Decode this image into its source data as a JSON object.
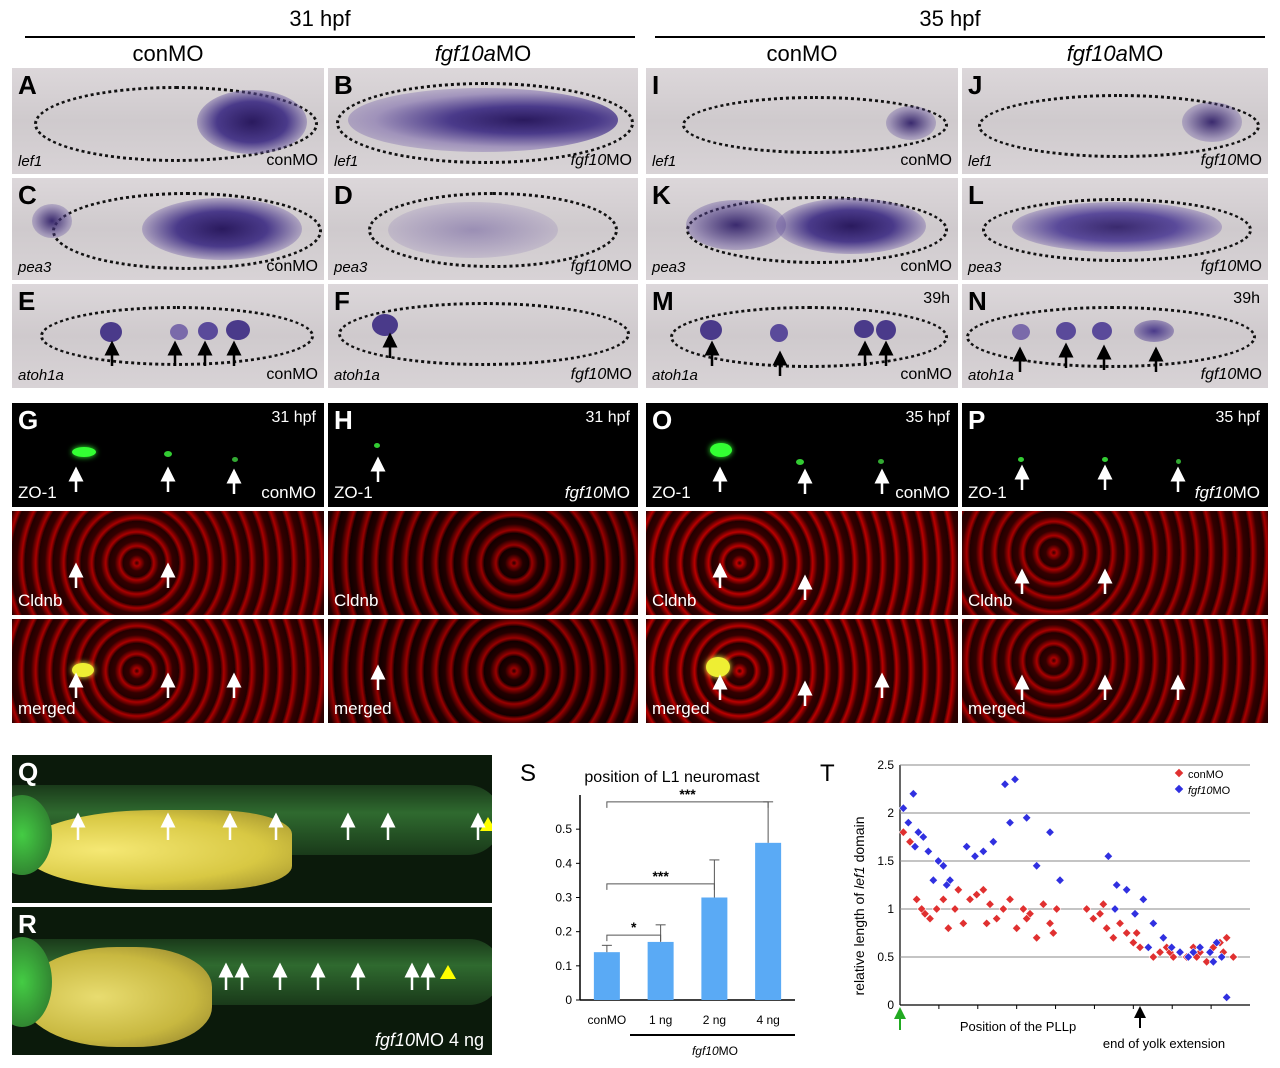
{
  "headers": {
    "t31": "31 hpf",
    "t35": "35 hpf",
    "conMO": "conMO",
    "fgf10aMO_it": "fgf10a",
    "fgf10aMO_rest": "MO"
  },
  "panels": {
    "A": {
      "letter": "A",
      "gene": "lef1",
      "mo": "conMO"
    },
    "B": {
      "letter": "B",
      "gene": "lef1",
      "mo_it": "fgf10",
      "mo_rest": "MO"
    },
    "I": {
      "letter": "I",
      "gene": "lef1",
      "mo": "conMO"
    },
    "J": {
      "letter": "J",
      "gene": "lef1",
      "mo_it": "fgf10",
      "mo_rest": "MO"
    },
    "C": {
      "letter": "C",
      "gene": "pea3",
      "mo": "conMO"
    },
    "D": {
      "letter": "D",
      "gene": "pea3",
      "mo_it": "fgf10",
      "mo_rest": "MO"
    },
    "K": {
      "letter": "K",
      "gene": "pea3",
      "mo": "conMO"
    },
    "L": {
      "letter": "L",
      "gene": "pea3",
      "mo_it": "fgf10",
      "mo_rest": "MO"
    },
    "E": {
      "letter": "E",
      "gene": "atoh1a",
      "mo": "conMO"
    },
    "F": {
      "letter": "F",
      "gene": "atoh1a",
      "mo_it": "fgf10",
      "mo_rest": "MO"
    },
    "M": {
      "letter": "M",
      "gene": "atoh1a",
      "mo": "conMO",
      "time": "39h"
    },
    "N": {
      "letter": "N",
      "gene": "atoh1a",
      "mo_it": "fgf10",
      "mo_rest": "MO",
      "time": "39h"
    },
    "G": {
      "letter": "G",
      "time": "31 hpf",
      "label1": "ZO-1",
      "label2": "Cldnb",
      "label3": "merged",
      "mo": "conMO"
    },
    "H": {
      "letter": "H",
      "time": "31 hpf",
      "label1": "ZO-1",
      "label2": "Cldnb",
      "label3": "merged",
      "mo_it": "fgf10",
      "mo_rest": "MO"
    },
    "O": {
      "letter": "O",
      "time": "35 hpf",
      "label1": "ZO-1",
      "label2": "Cldnb",
      "label3": "merged",
      "mo": "conMO"
    },
    "P": {
      "letter": "P",
      "time": "35 hpf",
      "label1": "ZO-1",
      "label2": "Cldnb",
      "label3": "merged",
      "mo_it": "fgf10",
      "mo_rest": "MO"
    },
    "Q": {
      "letter": "Q"
    },
    "R": {
      "letter": "R",
      "mo_it": "fgf10",
      "mo_rest": "MO 4 ng"
    }
  },
  "colors": {
    "bar": "#5aaaf5",
    "conMO": "#e03030",
    "fgf10MO": "#3030e0",
    "ish_bg": "#d5d0d3",
    "stain": "#3a2a6e"
  },
  "chart_data": [
    {
      "panel": "S",
      "type": "bar",
      "title": "position of L1 neuromast",
      "categories": [
        "conMO",
        "1 ng",
        "2 ng",
        "4 ng"
      ],
      "values": [
        0.14,
        0.17,
        0.3,
        0.46
      ],
      "errors": [
        0.02,
        0.05,
        0.11,
        0.12
      ],
      "ylim": [
        0,
        0.6
      ],
      "yticks": [
        "0",
        "0.1",
        "0.2",
        "0.3",
        "0.4",
        "0.5"
      ],
      "group_label_it": "fgf10",
      "group_label_rest": "MO",
      "significance": [
        {
          "from": "conMO",
          "to": "1 ng",
          "label": "*"
        },
        {
          "from": "conMO",
          "to": "2 ng",
          "label": "***"
        },
        {
          "from": "conMO",
          "to": "4 ng",
          "label": "***"
        }
      ]
    },
    {
      "panel": "T",
      "type": "scatter",
      "ylabel_pre": "relative length of ",
      "ylabel_it": "lef1",
      "ylabel_post": " domain",
      "xlabel": "Position of the PLLp",
      "x_note": "end of yolk extension",
      "ylim": [
        0,
        2.5
      ],
      "yticks": [
        "0",
        "0.5",
        "1",
        "1.5",
        "2",
        "2.5"
      ],
      "legend": {
        "conMO": "conMO",
        "fgf10_it": "fgf10",
        "fgf10_rest": "MO"
      },
      "series": [
        {
          "name": "conMO",
          "points": [
            [
              0.2,
              1.8
            ],
            [
              0.6,
              1.7
            ],
            [
              1.0,
              1.1
            ],
            [
              1.3,
              1.0
            ],
            [
              1.8,
              0.9
            ],
            [
              2.2,
              1.0
            ],
            [
              2.6,
              1.1
            ],
            [
              2.9,
              0.8
            ],
            [
              3.3,
              1.0
            ],
            [
              3.8,
              0.85
            ],
            [
              4.2,
              1.1
            ],
            [
              4.6,
              1.15
            ],
            [
              5.0,
              1.2
            ],
            [
              5.4,
              1.05
            ],
            [
              5.8,
              0.9
            ],
            [
              6.2,
              1.0
            ],
            [
              6.6,
              1.1
            ],
            [
              7.0,
              0.8
            ],
            [
              7.4,
              1.0
            ],
            [
              7.8,
              0.95
            ],
            [
              8.2,
              0.7
            ],
            [
              8.6,
              1.05
            ],
            [
              9.0,
              0.85
            ],
            [
              9.4,
              1.0
            ],
            [
              11.2,
              1.0
            ],
            [
              11.6,
              0.9
            ],
            [
              12.0,
              0.95
            ],
            [
              12.4,
              0.8
            ],
            [
              12.8,
              0.7
            ],
            [
              13.2,
              0.85
            ],
            [
              13.6,
              0.75
            ],
            [
              14.0,
              0.65
            ],
            [
              14.4,
              0.6
            ],
            [
              15.2,
              0.5
            ],
            [
              15.6,
              0.55
            ],
            [
              16.0,
              0.6
            ],
            [
              16.4,
              0.5
            ],
            [
              16.8,
              0.55
            ],
            [
              17.2,
              0.5
            ],
            [
              17.6,
              0.6
            ],
            [
              18.0,
              0.55
            ],
            [
              18.4,
              0.45
            ],
            [
              18.8,
              0.6
            ],
            [
              19.2,
              0.65
            ],
            [
              19.6,
              0.7
            ],
            [
              20.0,
              0.5
            ],
            [
              1.5,
              0.95
            ],
            [
              3.5,
              1.2
            ],
            [
              5.2,
              0.85
            ],
            [
              7.6,
              0.9
            ],
            [
              9.2,
              0.75
            ],
            [
              12.2,
              1.05
            ],
            [
              14.2,
              0.75
            ],
            [
              16.2,
              0.55
            ],
            [
              17.8,
              0.5
            ],
            [
              19.4,
              0.55
            ]
          ]
        },
        {
          "name": "fgf10MO",
          "points": [
            [
              0.2,
              2.05
            ],
            [
              0.5,
              1.9
            ],
            [
              0.8,
              2.2
            ],
            [
              1.1,
              1.8
            ],
            [
              1.4,
              1.75
            ],
            [
              1.7,
              1.6
            ],
            [
              2.0,
              1.3
            ],
            [
              2.3,
              1.5
            ],
            [
              2.6,
              1.45
            ],
            [
              3.0,
              1.3
            ],
            [
              4.0,
              1.65
            ],
            [
              4.5,
              1.55
            ],
            [
              5.0,
              1.6
            ],
            [
              5.6,
              1.7
            ],
            [
              6.3,
              2.3
            ],
            [
              6.9,
              2.35
            ],
            [
              7.6,
              1.95
            ],
            [
              8.2,
              1.45
            ],
            [
              9.0,
              1.8
            ],
            [
              9.6,
              1.3
            ],
            [
              12.5,
              1.55
            ],
            [
              13.0,
              1.25
            ],
            [
              13.6,
              1.2
            ],
            [
              14.1,
              0.95
            ],
            [
              14.6,
              1.1
            ],
            [
              15.2,
              0.85
            ],
            [
              15.8,
              0.7
            ],
            [
              16.3,
              0.6
            ],
            [
              16.8,
              0.55
            ],
            [
              17.3,
              0.5
            ],
            [
              18.0,
              0.6
            ],
            [
              18.6,
              0.55
            ],
            [
              19.0,
              0.65
            ],
            [
              19.3,
              0.5
            ],
            [
              19.6,
              0.08
            ],
            [
              0.9,
              1.65
            ],
            [
              2.8,
              1.25
            ],
            [
              6.6,
              1.9
            ],
            [
              12.9,
              1.0
            ],
            [
              14.9,
              0.6
            ],
            [
              17.6,
              0.55
            ],
            [
              18.8,
              0.45
            ]
          ]
        }
      ]
    }
  ]
}
